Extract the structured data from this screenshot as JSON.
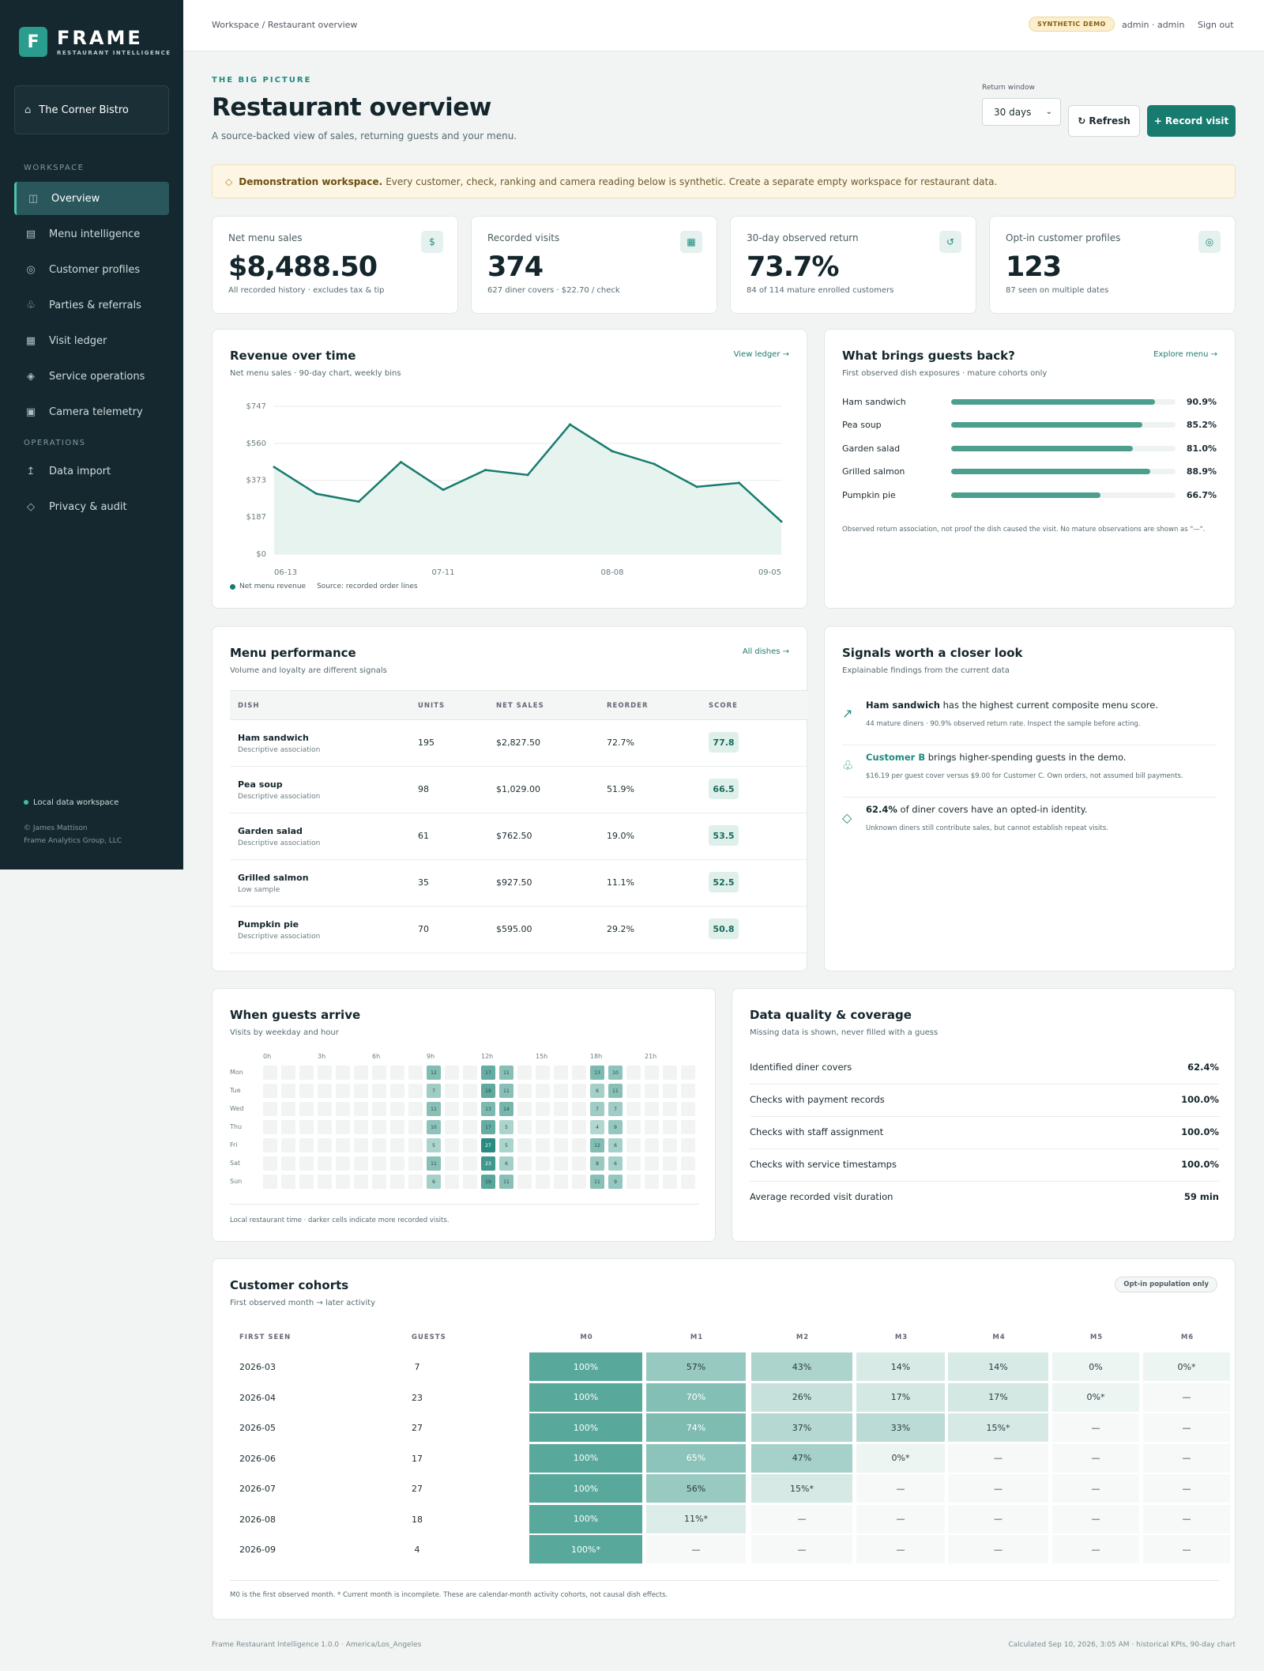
{
  "brand": {
    "mark": "F",
    "name": "FRAME",
    "tagline": "RESTAURANT INTELLIGENCE"
  },
  "workspace": {
    "name": "The Corner Bistro"
  },
  "nav": {
    "workspace_label": "WORKSPACE",
    "operations_label": "OPERATIONS",
    "items": [
      {
        "label": "Overview",
        "icon": "overview-icon",
        "glyph": "◫"
      },
      {
        "label": "Menu intelligence",
        "icon": "menu-icon",
        "glyph": "▤"
      },
      {
        "label": "Customer profiles",
        "icon": "profile-icon",
        "glyph": "◎"
      },
      {
        "label": "Parties & referrals",
        "icon": "parties-icon",
        "glyph": "♧"
      },
      {
        "label": "Visit ledger",
        "icon": "ledger-icon",
        "glyph": "▦"
      },
      {
        "label": "Service operations",
        "icon": "service-icon",
        "glyph": "◈"
      },
      {
        "label": "Camera telemetry",
        "icon": "camera-icon",
        "glyph": "▣"
      }
    ],
    "ops_items": [
      {
        "label": "Data import",
        "icon": "import-icon",
        "glyph": "↥"
      },
      {
        "label": "Privacy & audit",
        "icon": "privacy-icon",
        "glyph": "◇"
      }
    ],
    "footer_status": "Local data workspace",
    "copyright": "© James Mattison",
    "company": "Frame Analytics Group, LLC"
  },
  "topbar": {
    "breadcrumb": "Workspace / Restaurant overview",
    "badge": "SYNTHETIC DEMO",
    "user": "admin · admin",
    "signout": "Sign out"
  },
  "header": {
    "eyebrow": "THE BIG PICTURE",
    "title": "Restaurant overview",
    "subtitle": "A source-backed view of sales, returning guests and your menu.",
    "return_window_label": "Return window",
    "return_window_value": "30 days",
    "refresh_label": "↻ Refresh",
    "record_label": "+ Record visit"
  },
  "notice": {
    "bold": "Demonstration workspace.",
    "text": "Every customer, check, ranking and camera reading below is synthetic. Create a separate empty workspace for restaurant data."
  },
  "kpis": [
    {
      "label": "Net menu sales",
      "value": "$8,488.50",
      "sub": "All recorded history · excludes tax & tip",
      "icon": "dollar-icon",
      "glyph": "$"
    },
    {
      "label": "Recorded visits",
      "value": "374",
      "sub": "627 diner covers · $22.70 / check",
      "icon": "visits-icon",
      "glyph": "▦"
    },
    {
      "label": "30-day observed return",
      "value": "73.7%",
      "sub": "84 of 114 mature enrolled customers",
      "icon": "return-icon",
      "glyph": "↺"
    },
    {
      "label": "Opt-in customer profiles",
      "value": "123",
      "sub": "87 seen on multiple dates",
      "icon": "profile-icon",
      "glyph": "◎"
    }
  ],
  "revenue": {
    "title": "Revenue over time",
    "subtitle": "Net menu sales · 90-day chart, weekly bins",
    "link": "View ledger →",
    "legend": "Net menu revenue",
    "source": "Source: recorded order lines"
  },
  "chart_data": {
    "type": "area",
    "title": "Revenue over time",
    "ylabel": "",
    "xlabel": "",
    "ylim": [
      0,
      747
    ],
    "y_ticks": [
      "$747",
      "$560",
      "$373",
      "$187",
      "$0"
    ],
    "y_tick_values": [
      747,
      560,
      373,
      187,
      0
    ],
    "x_ticks": [
      "06-13",
      "07-11",
      "08-08",
      "09-05"
    ],
    "x_tick_index": [
      0,
      4,
      8,
      12
    ],
    "series": [
      {
        "name": "Net menu revenue",
        "values": [
          440,
          305,
          265,
          465,
          325,
          425,
          400,
          655,
          520,
          455,
          340,
          360,
          165
        ]
      }
    ],
    "grid": true,
    "color": "#177c6f"
  },
  "returns": {
    "title": "What brings guests back?",
    "subtitle": "First observed dish exposures · mature cohorts only",
    "link": "Explore menu →",
    "items": [
      {
        "name": "Ham sandwich",
        "pct": "90.9%",
        "value": 0.909
      },
      {
        "name": "Pea soup",
        "pct": "85.2%",
        "value": 0.852
      },
      {
        "name": "Garden salad",
        "pct": "81.0%",
        "value": 0.81
      },
      {
        "name": "Grilled salmon",
        "pct": "88.9%",
        "value": 0.889
      },
      {
        "name": "Pumpkin pie",
        "pct": "66.7%",
        "value": 0.667
      }
    ],
    "note": "Observed return association, not proof the dish caused the visit. No mature observations are shown as \"—\"."
  },
  "menu": {
    "title": "Menu performance",
    "subtitle": "Volume and loyalty are different signals",
    "link": "All dishes →",
    "headers": [
      "DISH",
      "UNITS",
      "NET SALES",
      "REORDER",
      "SCORE"
    ],
    "rows": [
      {
        "dish": "Ham sandwich",
        "note": "Descriptive association",
        "units": "195",
        "sales": "$2,827.50",
        "reorder": "72.7%",
        "score": "77.8"
      },
      {
        "dish": "Pea soup",
        "note": "Descriptive association",
        "units": "98",
        "sales": "$1,029.00",
        "reorder": "51.9%",
        "score": "66.5"
      },
      {
        "dish": "Garden salad",
        "note": "Descriptive association",
        "units": "61",
        "sales": "$762.50",
        "reorder": "19.0%",
        "score": "53.5"
      },
      {
        "dish": "Grilled salmon",
        "note": "Low sample",
        "units": "35",
        "sales": "$927.50",
        "reorder": "11.1%",
        "score": "52.5"
      },
      {
        "dish": "Pumpkin pie",
        "note": "Descriptive association",
        "units": "70",
        "sales": "$595.00",
        "reorder": "29.2%",
        "score": "50.8"
      }
    ]
  },
  "signals": {
    "title": "Signals worth a closer look",
    "subtitle": "Explainable findings from the current data",
    "items": [
      {
        "icon": "trend-icon",
        "glyph": "↗",
        "bold": "Ham sandwich",
        "text": " has the highest current composite menu score.",
        "detail": "44 mature diners · 90.9% observed return rate. Inspect the sample before acting."
      },
      {
        "icon": "group-icon",
        "glyph": "♧",
        "bold": "Customer B",
        "text": " brings higher-spending guests in the demo.",
        "detail": "$16.19 per guest cover versus $9.00 for Customer C. Own orders, not assumed bill payments."
      },
      {
        "icon": "diamond-icon",
        "glyph": "◇",
        "bold": "62.4%",
        "text": " of diner covers have an opted-in identity.",
        "detail": "Unknown diners still contribute sales, but cannot establish repeat visits."
      }
    ]
  },
  "arrivals": {
    "title": "When guests arrive",
    "subtitle": "Visits by weekday and hour",
    "hour_labels": [
      "0h",
      "3h",
      "6h",
      "9h",
      "12h",
      "15h",
      "18h",
      "21h"
    ],
    "days": [
      "Mon",
      "Tue",
      "Wed",
      "Thu",
      "Fri",
      "Sat",
      "Sun"
    ],
    "cells": [
      {
        "d": 0,
        "h": 9,
        "v": "12"
      },
      {
        "d": 0,
        "h": 12,
        "v": "17"
      },
      {
        "d": 0,
        "h": 13,
        "v": "11"
      },
      {
        "d": 0,
        "h": 18,
        "v": "13"
      },
      {
        "d": 0,
        "h": 19,
        "v": "10"
      },
      {
        "d": 1,
        "h": 9,
        "v": "7"
      },
      {
        "d": 1,
        "h": 12,
        "v": "18"
      },
      {
        "d": 1,
        "h": 13,
        "v": "11"
      },
      {
        "d": 1,
        "h": 18,
        "v": "6"
      },
      {
        "d": 1,
        "h": 19,
        "v": "11"
      },
      {
        "d": 2,
        "h": 9,
        "v": "11"
      },
      {
        "d": 2,
        "h": 12,
        "v": "13"
      },
      {
        "d": 2,
        "h": 13,
        "v": "14"
      },
      {
        "d": 2,
        "h": 18,
        "v": "7"
      },
      {
        "d": 2,
        "h": 19,
        "v": "7"
      },
      {
        "d": 3,
        "h": 9,
        "v": "10"
      },
      {
        "d": 3,
        "h": 12,
        "v": "17"
      },
      {
        "d": 3,
        "h": 13,
        "v": "5"
      },
      {
        "d": 3,
        "h": 18,
        "v": "4"
      },
      {
        "d": 3,
        "h": 19,
        "v": "9"
      },
      {
        "d": 4,
        "h": 9,
        "v": "5"
      },
      {
        "d": 4,
        "h": 12,
        "v": "27"
      },
      {
        "d": 4,
        "h": 13,
        "v": "5"
      },
      {
        "d": 4,
        "h": 18,
        "v": "12"
      },
      {
        "d": 4,
        "h": 19,
        "v": "6"
      },
      {
        "d": 5,
        "h": 9,
        "v": "11"
      },
      {
        "d": 5,
        "h": 12,
        "v": "23"
      },
      {
        "d": 5,
        "h": 13,
        "v": "6"
      },
      {
        "d": 5,
        "h": 18,
        "v": "8"
      },
      {
        "d": 5,
        "h": 19,
        "v": "6"
      },
      {
        "d": 6,
        "h": 9,
        "v": "6"
      },
      {
        "d": 6,
        "h": 12,
        "v": "19"
      },
      {
        "d": 6,
        "h": 13,
        "v": "11"
      },
      {
        "d": 6,
        "h": 18,
        "v": "11"
      },
      {
        "d": 6,
        "h": 19,
        "v": "9"
      }
    ],
    "note": "Local restaurant time · darker cells indicate more recorded visits."
  },
  "quality": {
    "title": "Data quality & coverage",
    "subtitle": "Missing data is shown, never filled with a guess",
    "rows": [
      {
        "label": "Identified diner covers",
        "value": "62.4%"
      },
      {
        "label": "Checks with payment records",
        "value": "100.0%"
      },
      {
        "label": "Checks with staff assignment",
        "value": "100.0%"
      },
      {
        "label": "Checks with service timestamps",
        "value": "100.0%"
      },
      {
        "label": "Average recorded visit duration",
        "value": "59 min"
      }
    ]
  },
  "cohorts": {
    "title": "Customer cohorts",
    "subtitle": "First observed month → later activity",
    "pill": "Opt-in population only",
    "headers": [
      "FIRST SEEN",
      "GUESTS",
      "M0",
      "M1",
      "M2",
      "M3",
      "M4",
      "M5",
      "M6"
    ],
    "rows": [
      {
        "month": "2026-03",
        "guests": "7",
        "cells": [
          {
            "t": "100%",
            "v": 1
          },
          {
            "t": "57%",
            "v": 0.57
          },
          {
            "t": "43%",
            "v": 0.43
          },
          {
            "t": "14%",
            "v": 0.14
          },
          {
            "t": "14%",
            "v": 0.14
          },
          {
            "t": "0%",
            "v": 0
          },
          {
            "t": "0%*",
            "v": 0
          }
        ]
      },
      {
        "month": "2026-04",
        "guests": "23",
        "cells": [
          {
            "t": "100%",
            "v": 1
          },
          {
            "t": "70%",
            "v": 0.7
          },
          {
            "t": "26%",
            "v": 0.26
          },
          {
            "t": "17%",
            "v": 0.17
          },
          {
            "t": "17%",
            "v": 0.17
          },
          {
            "t": "0%*",
            "v": 0
          },
          {
            "t": "—",
            "v": null
          }
        ]
      },
      {
        "month": "2026-05",
        "guests": "27",
        "cells": [
          {
            "t": "100%",
            "v": 1
          },
          {
            "t": "74%",
            "v": 0.74
          },
          {
            "t": "37%",
            "v": 0.37
          },
          {
            "t": "33%",
            "v": 0.33
          },
          {
            "t": "15%*",
            "v": 0.15
          },
          {
            "t": "—",
            "v": null
          },
          {
            "t": "—",
            "v": null
          }
        ]
      },
      {
        "month": "2026-06",
        "guests": "17",
        "cells": [
          {
            "t": "100%",
            "v": 1
          },
          {
            "t": "65%",
            "v": 0.65
          },
          {
            "t": "47%",
            "v": 0.47
          },
          {
            "t": "0%*",
            "v": 0
          },
          {
            "t": "—",
            "v": null
          },
          {
            "t": "—",
            "v": null
          },
          {
            "t": "—",
            "v": null
          }
        ]
      },
      {
        "month": "2026-07",
        "guests": "27",
        "cells": [
          {
            "t": "100%",
            "v": 1
          },
          {
            "t": "56%",
            "v": 0.56
          },
          {
            "t": "15%*",
            "v": 0.15
          },
          {
            "t": "—",
            "v": null
          },
          {
            "t": "—",
            "v": null
          },
          {
            "t": "—",
            "v": null
          },
          {
            "t": "—",
            "v": null
          }
        ]
      },
      {
        "month": "2026-08",
        "guests": "18",
        "cells": [
          {
            "t": "100%",
            "v": 1
          },
          {
            "t": "11%*",
            "v": 0.11
          },
          {
            "t": "—",
            "v": null
          },
          {
            "t": "—",
            "v": null
          },
          {
            "t": "—",
            "v": null
          },
          {
            "t": "—",
            "v": null
          },
          {
            "t": "—",
            "v": null
          }
        ]
      },
      {
        "month": "2026-09",
        "guests": "4",
        "cells": [
          {
            "t": "100%*",
            "v": 1
          },
          {
            "t": "—",
            "v": null
          },
          {
            "t": "—",
            "v": null
          },
          {
            "t": "—",
            "v": null
          },
          {
            "t": "—",
            "v": null
          },
          {
            "t": "—",
            "v": null
          },
          {
            "t": "—",
            "v": null
          }
        ]
      }
    ],
    "note": "M0 is the first observed month. * Current month is incomplete. These are calendar-month activity cohorts, not causal dish effects."
  },
  "footer": {
    "left": "Frame Restaurant Intelligence 1.0.0 · America/Los_Angeles",
    "right": "Calculated Sep 10, 2026, 3:05 AM · historical KPIs, 90-day chart"
  }
}
